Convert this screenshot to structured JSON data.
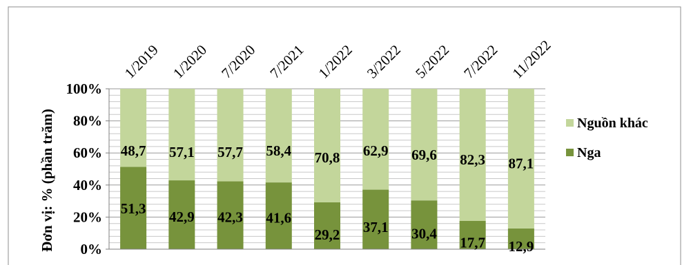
{
  "chart_data": {
    "type": "bar",
    "stacked": true,
    "percent_stacked": true,
    "title": "",
    "ylabel": "Đơn vị: % (phần trăm)",
    "xlabel": "",
    "categories": [
      "1/2019",
      "1/2020",
      "7/2020",
      "7/2021",
      "1/2022",
      "3/2022",
      "5/2022",
      "7/2022",
      "11/2022"
    ],
    "yticks": [
      "0%",
      "20%",
      "40%",
      "60%",
      "80%",
      "100%"
    ],
    "ylim": [
      0,
      100
    ],
    "grid": true,
    "legend_position": "right",
    "series": [
      {
        "name": "Nga",
        "color": "#77933c",
        "values": [
          51.3,
          42.9,
          42.3,
          41.6,
          29.2,
          37.1,
          30.4,
          17.7,
          12.9
        ],
        "labels": [
          "51,3",
          "42,9",
          "42,3",
          "41,6",
          "29,2",
          "37,1",
          "30,4",
          "17,7",
          "12,9"
        ]
      },
      {
        "name": "Nguồn khác",
        "color": "#c3d69b",
        "values": [
          48.7,
          57.1,
          57.7,
          58.4,
          70.8,
          62.9,
          69.6,
          82.3,
          87.1
        ],
        "labels": [
          "48,7",
          "57,1",
          "57,7",
          "58,4",
          "70,8",
          "62,9",
          "69,6",
          "82,3",
          "87,1"
        ]
      }
    ],
    "legend": [
      {
        "name": "Nguồn khác",
        "color": "#c3d69b"
      },
      {
        "name": "Nga",
        "color": "#77933c"
      }
    ]
  }
}
